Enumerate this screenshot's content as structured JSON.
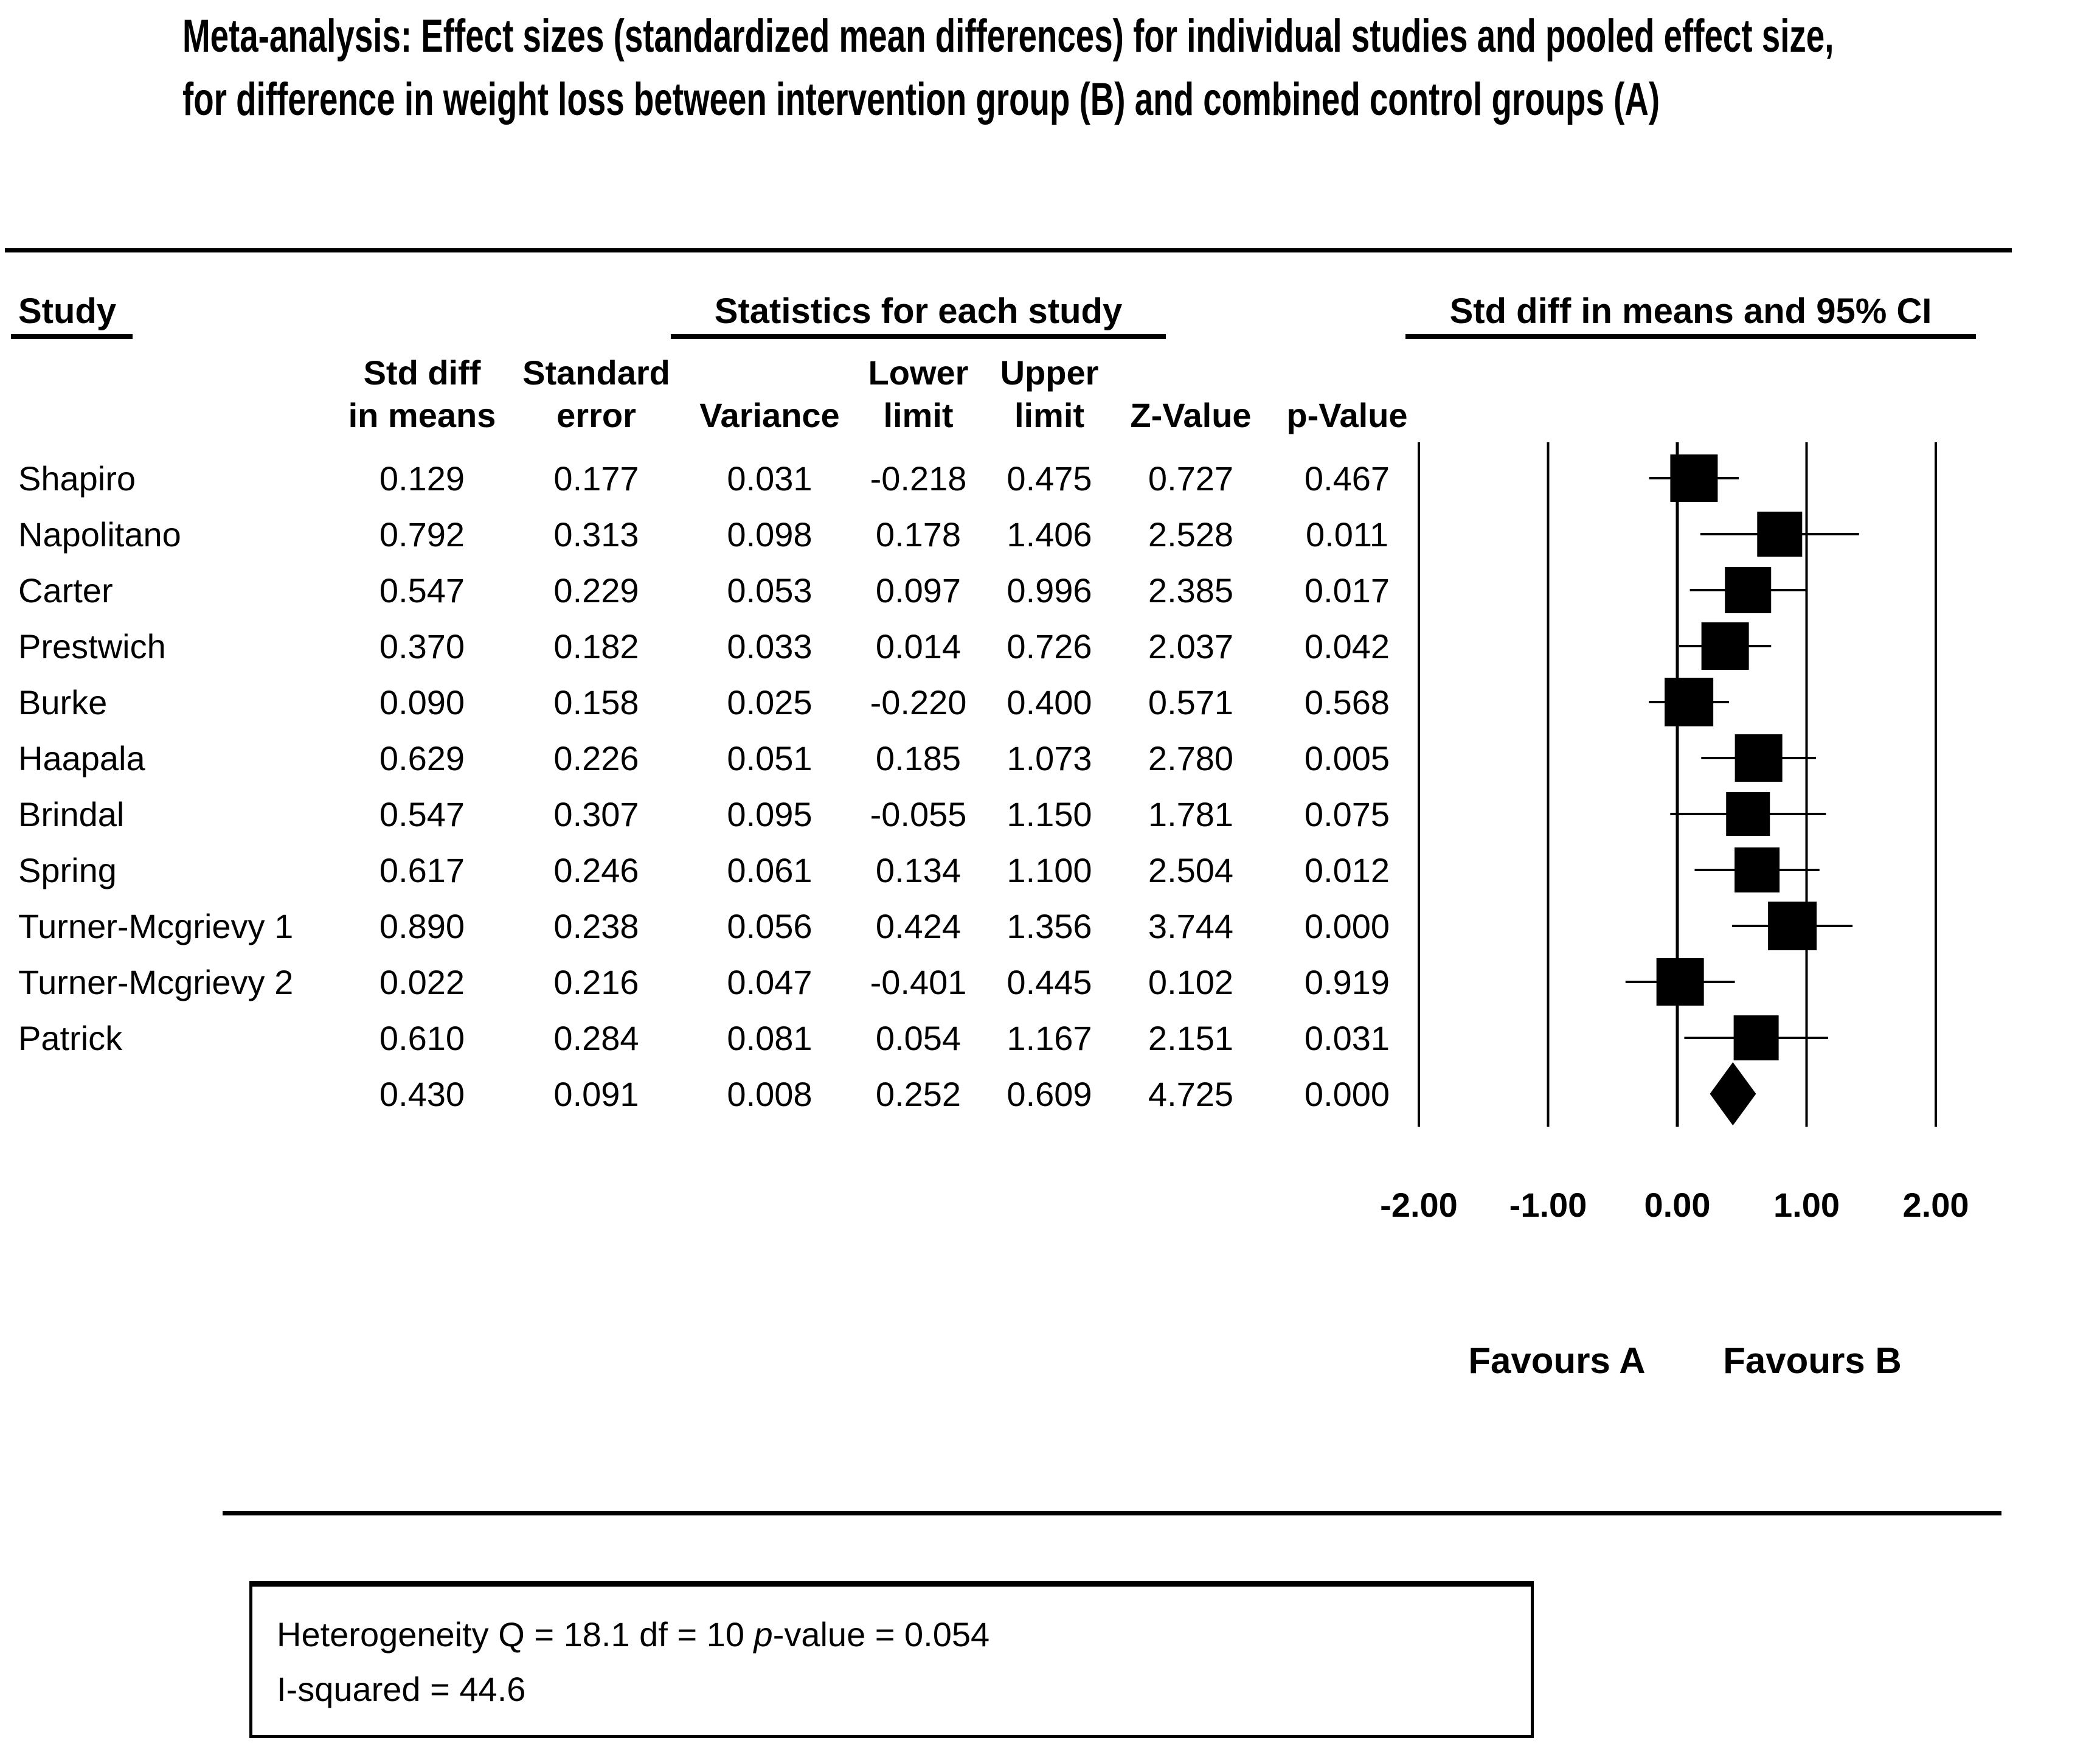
{
  "title": {
    "line1": "Meta-analysis: Effect sizes (standardized mean differences) for individual studies and pooled effect size,",
    "line2": "for difference in weight loss between intervention group (B) and combined control groups (A)"
  },
  "header": {
    "study": "Study",
    "stats_group": "Statistics for each study",
    "plot_group": "Std diff in means and 95% CI"
  },
  "columns": [
    {
      "l1": "Std diff",
      "l2": "in means"
    },
    {
      "l1": "Standard",
      "l2": "error"
    },
    {
      "l1": "",
      "l2": "Variance"
    },
    {
      "l1": "Lower",
      "l2": "limit"
    },
    {
      "l1": "Upper",
      "l2": "limit"
    },
    {
      "l1": "",
      "l2": "Z-Value"
    },
    {
      "l1": "",
      "l2": "p-Value"
    }
  ],
  "chart_data": {
    "type": "forest",
    "xlim": [
      -2,
      2
    ],
    "x_ticks": [
      {
        "label": "-2.00",
        "value": -2
      },
      {
        "label": "-1.00",
        "value": -1
      },
      {
        "label": "0.00",
        "value": 0
      },
      {
        "label": "1.00",
        "value": 1
      },
      {
        "label": "2.00",
        "value": 2
      }
    ],
    "favours": {
      "left": "Favours A",
      "right": "Favours B"
    },
    "studies": [
      {
        "name": "Shapiro",
        "std_diff": "0.129",
        "se": "0.177",
        "variance": "0.031",
        "lower": "-0.218",
        "upper": "0.475",
        "z": "0.727",
        "p": "0.467",
        "marker": 78
      },
      {
        "name": "Napolitano",
        "std_diff": "0.792",
        "se": "0.313",
        "variance": "0.098",
        "lower": "0.178",
        "upper": "1.406",
        "z": "2.528",
        "p": "0.011",
        "marker": 74
      },
      {
        "name": "Carter",
        "std_diff": "0.547",
        "se": "0.229",
        "variance": "0.053",
        "lower": "0.097",
        "upper": "0.996",
        "z": "2.385",
        "p": "0.017",
        "marker": 76
      },
      {
        "name": "Prestwich",
        "std_diff": "0.370",
        "se": "0.182",
        "variance": "0.033",
        "lower": "0.014",
        "upper": "0.726",
        "z": "2.037",
        "p": "0.042",
        "marker": 78
      },
      {
        "name": "Burke",
        "std_diff": "0.090",
        "se": "0.158",
        "variance": "0.025",
        "lower": "-0.220",
        "upper": "0.400",
        "z": "0.571",
        "p": "0.568",
        "marker": 80
      },
      {
        "name": "Haapala",
        "std_diff": "0.629",
        "se": "0.226",
        "variance": "0.051",
        "lower": "0.185",
        "upper": "1.073",
        "z": "2.780",
        "p": "0.005",
        "marker": 78
      },
      {
        "name": "Brindal",
        "std_diff": "0.547",
        "se": "0.307",
        "variance": "0.095",
        "lower": "-0.055",
        "upper": "1.150",
        "z": "1.781",
        "p": "0.075",
        "marker": 72
      },
      {
        "name": "Spring",
        "std_diff": "0.617",
        "se": "0.246",
        "variance": "0.061",
        "lower": "0.134",
        "upper": "1.100",
        "z": "2.504",
        "p": "0.012",
        "marker": 74
      },
      {
        "name": "Turner-Mcgrievy 1",
        "std_diff": "0.890",
        "se": "0.238",
        "variance": "0.056",
        "lower": "0.424",
        "upper": "1.356",
        "z": "3.744",
        "p": "0.000",
        "marker": 80
      },
      {
        "name": "Turner-Mcgrievy 2",
        "std_diff": "0.022",
        "se": "0.216",
        "variance": "0.047",
        "lower": "-0.401",
        "upper": "0.445",
        "z": "0.102",
        "p": "0.919",
        "marker": 78
      },
      {
        "name": "Patrick",
        "std_diff": "0.610",
        "se": "0.284",
        "variance": "0.081",
        "lower": "0.054",
        "upper": "1.167",
        "z": "2.151",
        "p": "0.031",
        "marker": 74
      }
    ],
    "pooled": {
      "name": "",
      "std_diff": "0.430",
      "se": "0.091",
      "variance": "0.008",
      "lower": "0.252",
      "upper": "0.609",
      "z": "4.725",
      "p": "0.000"
    },
    "heterogeneity": {
      "Q": "18.1",
      "df": "10",
      "p_value": "0.054",
      "I_squared": "44.6"
    }
  },
  "footer": {
    "line1_prefix": "Heterogeneity Q = 18.1 df = 10 ",
    "line1_italic": "p",
    "line1_suffix": "-value = 0.054",
    "line2": "I-squared = 44.6"
  },
  "colors": {
    "ink": "#000000",
    "background": "#ffffff"
  }
}
